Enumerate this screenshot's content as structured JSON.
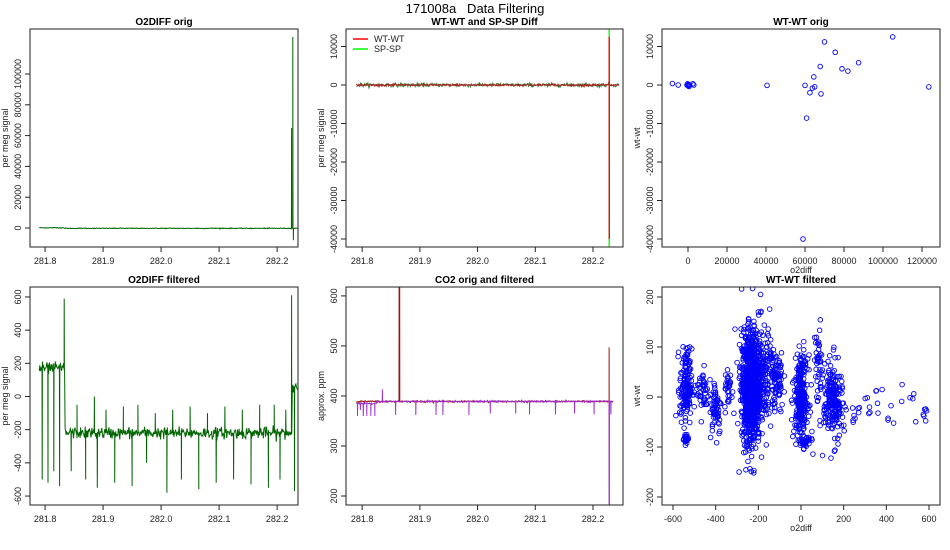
{
  "figure_title": "171008a   Data Filtering",
  "chart_data": [
    {
      "type": "line",
      "title": "O2DIFF orig",
      "xlabel": "",
      "ylabel": "per meg signal",
      "xlim": [
        281.774,
        282.236
      ],
      "ylim": [
        -12340,
        129220
      ],
      "xticks": [
        "281.8",
        "281.9",
        "282.0",
        "282.1",
        "282.2"
      ],
      "yticks": [
        "0",
        "20000",
        "40000",
        "60000",
        "80000",
        "100000"
      ],
      "series": [
        {
          "name": "O2DIFF",
          "color": "#006400",
          "baseline": -200,
          "noise": 250,
          "x_range": [
            281.79,
            282.235
          ],
          "levels": [
            [
              281.79,
              281.833,
              170
            ]
          ],
          "spikes": [
            [
              282.225,
              65000
            ],
            [
              282.227,
              124000
            ],
            [
              282.228,
              -8000
            ]
          ]
        }
      ]
    },
    {
      "type": "line",
      "title": "WT-WT and SP-SP Diff",
      "xlabel": "",
      "ylabel": "per meg signal",
      "xlim": [
        281.772,
        282.252
      ],
      "ylim": [
        -42078,
        14545
      ],
      "xticks": [
        "281.8",
        "281.9",
        "282.0",
        "282.1",
        "282.2"
      ],
      "yticks": [
        "-40000",
        "-30000",
        "-20000",
        "-10000",
        "0",
        "10000"
      ],
      "legend": {
        "position": "top-left",
        "entries": [
          {
            "label": "WT-WT",
            "color": "#ff0000"
          },
          {
            "label": "SP-SP",
            "color": "#00ff00"
          }
        ]
      },
      "series": [
        {
          "name": "SP-SP",
          "color": "#2e7d2e",
          "spike_color": "#00ff00",
          "baseline": 0,
          "noise": 450,
          "x_range": [
            281.79,
            282.245
          ],
          "spikes": [
            [
              282.2279,
              14500
            ],
            [
              282.228,
              -42000
            ]
          ]
        },
        {
          "name": "WT-WT",
          "color": "#b02020",
          "spike_color": "#ff0000",
          "baseline": 0,
          "noise": 250,
          "x_range": [
            281.79,
            282.245
          ],
          "spikes": [
            [
              282.2281,
              12500
            ],
            [
              282.2282,
              -40000
            ]
          ]
        }
      ]
    },
    {
      "type": "scatter",
      "title": "WT-WT orig",
      "xlabel": "o2diff",
      "ylabel": "wt-wt",
      "xlim": [
        -13333,
        129231
      ],
      "ylim": [
        -42078,
        14545
      ],
      "xticks": [
        "0",
        "20000",
        "40000",
        "60000",
        "80000",
        "100000",
        "120000"
      ],
      "yticks": [
        "-40000",
        "-30000",
        "-20000",
        "-10000",
        "0",
        "10000"
      ],
      "color": "#0000ff",
      "points": [
        [
          -8000,
          400
        ],
        [
          -5000,
          0
        ],
        [
          -500,
          0
        ],
        [
          0,
          -200
        ],
        [
          300,
          100
        ],
        [
          500,
          -400
        ],
        [
          -200,
          300
        ],
        [
          800,
          0
        ],
        [
          2500,
          300
        ],
        [
          3000,
          0
        ],
        [
          40500,
          -100
        ],
        [
          60000,
          -100
        ],
        [
          60800,
          -8600
        ],
        [
          62500,
          -2000
        ],
        [
          63800,
          -800
        ],
        [
          64500,
          2100
        ],
        [
          65000,
          -500
        ],
        [
          67800,
          4800
        ],
        [
          68200,
          -2300
        ],
        [
          70000,
          11200
        ],
        [
          75500,
          8500
        ],
        [
          79000,
          4200
        ],
        [
          82000,
          3600
        ],
        [
          87500,
          5800
        ],
        [
          105000,
          12500
        ],
        [
          123500,
          -500
        ],
        [
          59000,
          -40000
        ]
      ]
    },
    {
      "type": "line",
      "title": "O2DIFF filtered",
      "xlabel": "",
      "ylabel": "per meg signal",
      "xlim": [
        281.774,
        282.236
      ],
      "ylim": [
        -654,
        660
      ],
      "xticks": [
        "281.8",
        "281.9",
        "282.0",
        "282.1",
        "282.2"
      ],
      "yticks": [
        "-600",
        "-400",
        "-200",
        "0",
        "200",
        "400",
        "600"
      ],
      "series": [
        {
          "name": "O2DIFF filtered",
          "color": "#006400",
          "baseline": -220,
          "noise": 35,
          "x_range": [
            281.79,
            282.235
          ],
          "levels": [
            [
              281.79,
              281.834,
              170
            ],
            [
              282.226,
              282.235,
              60
            ]
          ],
          "spikes": [
            [
              281.795,
              -500
            ],
            [
              281.805,
              -520
            ],
            [
              281.815,
              -450
            ],
            [
              281.825,
              -540
            ],
            [
              281.833,
              590
            ],
            [
              281.845,
              -450
            ],
            [
              281.855,
              -50
            ],
            [
              281.87,
              -500
            ],
            [
              281.885,
              0
            ],
            [
              281.89,
              -550
            ],
            [
              281.905,
              -80
            ],
            [
              281.92,
              -520
            ],
            [
              281.935,
              -60
            ],
            [
              281.95,
              -540
            ],
            [
              281.96,
              -50
            ],
            [
              281.975,
              -400
            ],
            [
              281.99,
              -100
            ],
            [
              282.01,
              -580
            ],
            [
              282.02,
              -80
            ],
            [
              282.035,
              -500
            ],
            [
              282.05,
              -60
            ],
            [
              282.065,
              -560
            ],
            [
              282.08,
              -100
            ],
            [
              282.095,
              -520
            ],
            [
              282.11,
              -60
            ],
            [
              282.125,
              -500
            ],
            [
              282.14,
              -80
            ],
            [
              282.155,
              -530
            ],
            [
              282.17,
              -50
            ],
            [
              282.185,
              -550
            ],
            [
              282.195,
              -50
            ],
            [
              282.205,
              -500
            ],
            [
              282.215,
              -80
            ],
            [
              282.225,
              610
            ],
            [
              282.23,
              -570
            ]
          ]
        }
      ]
    },
    {
      "type": "line",
      "title": "CO2 orig and filtered",
      "xlabel": "",
      "ylabel": "approx. ppm",
      "xlim": [
        281.772,
        282.252
      ],
      "ylim": [
        182,
        617.8
      ],
      "xticks": [
        "281.8",
        "281.9",
        "282.0",
        "282.1",
        "282.2"
      ],
      "yticks": [
        "200",
        "300",
        "400",
        "500",
        "600"
      ],
      "series": [
        {
          "name": "CO2 orig",
          "color": "#a01010",
          "baseline": 389,
          "noise": 1.5,
          "x_range": [
            281.79,
            282.235
          ],
          "spikes": [
            [
              281.864,
              620
            ],
            [
              281.865,
              620
            ],
            [
              282.228,
              497
            ],
            [
              282.2282,
              182
            ]
          ]
        },
        {
          "name": "CO2 filtered",
          "color": "#a030d0",
          "baseline": 389,
          "noise": 1.5,
          "x_range": [
            281.79,
            282.235
          ],
          "levels": [
            [
              281.79,
              281.825,
              385
            ]
          ],
          "spikes": [
            [
              281.792,
              360
            ],
            [
              281.797,
              372
            ],
            [
              281.802,
              360
            ],
            [
              281.808,
              360
            ],
            [
              281.815,
              360
            ],
            [
              281.822,
              360
            ],
            [
              281.835,
              413
            ],
            [
              281.858,
              362
            ],
            [
              281.893,
              362
            ],
            [
              281.928,
              362
            ],
            [
              281.94,
              362
            ],
            [
              281.985,
              362
            ],
            [
              282.022,
              365
            ],
            [
              282.066,
              365
            ],
            [
              282.09,
              363
            ],
            [
              282.135,
              363
            ],
            [
              282.168,
              365
            ],
            [
              282.202,
              363
            ],
            [
              282.228,
              185
            ],
            [
              282.231,
              363
            ]
          ]
        }
      ]
    },
    {
      "type": "scatter",
      "title": "WT-WT filtered",
      "xlabel": "o2diff",
      "ylabel": "wt-wt",
      "xlim": [
        -651.6,
        651.6
      ],
      "ylim": [
        -216,
        220
      ],
      "xticks": [
        "-600",
        "-400",
        "-200",
        "0",
        "200",
        "400",
        "600"
      ],
      "yticks": [
        "-200",
        "-100",
        "0",
        "100",
        "200"
      ],
      "color": "#0000ff",
      "clusters": [
        [
          -540,
          20,
          14,
          38,
          150
        ],
        [
          -540,
          -82,
          6,
          6,
          20
        ],
        [
          -460,
          10,
          14,
          25,
          40
        ],
        [
          -400,
          -20,
          14,
          28,
          60
        ],
        [
          -340,
          15,
          9,
          22,
          30
        ],
        [
          -235,
          20,
          22,
          55,
          900
        ],
        [
          -175,
          40,
          35,
          50,
          200
        ],
        [
          -110,
          30,
          14,
          30,
          60
        ],
        [
          0,
          0,
          16,
          40,
          250
        ],
        [
          20,
          -90,
          14,
          8,
          30
        ],
        [
          80,
          60,
          10,
          40,
          40
        ],
        [
          150,
          -10,
          22,
          40,
          200
        ],
        [
          250,
          -30,
          40,
          15,
          15
        ],
        [
          420,
          -15,
          90,
          20,
          15
        ],
        [
          585,
          -30,
          10,
          10,
          6
        ]
      ],
      "points": [
        [
          -290,
          -150
        ],
        [
          380,
          15
        ]
      ]
    }
  ]
}
